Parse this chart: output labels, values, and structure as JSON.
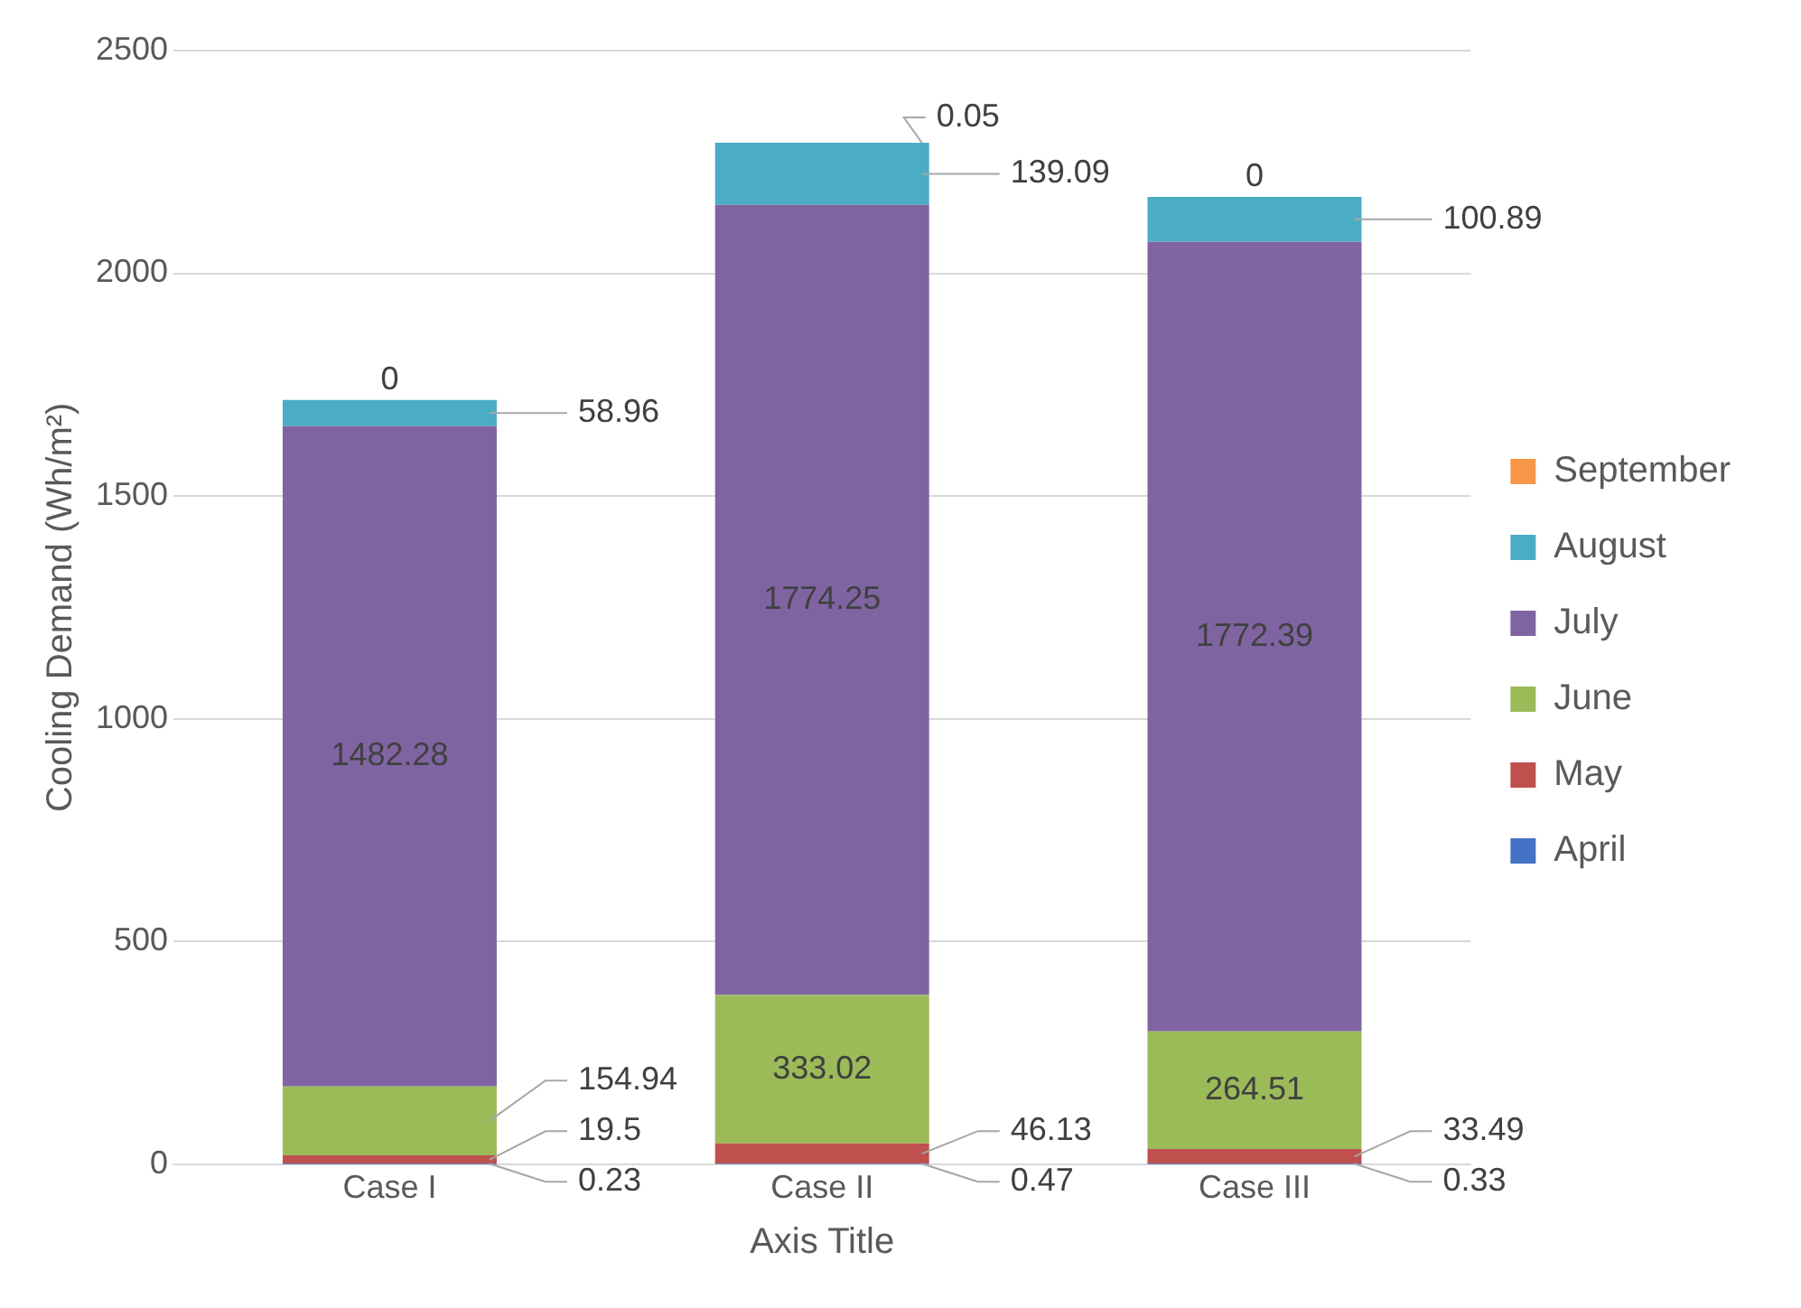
{
  "chart_data": {
    "type": "bar",
    "stacked": true,
    "categories": [
      "Case I",
      "Case II",
      "Case III"
    ],
    "xlabel": "Axis Title",
    "ylabel": "Cooling Demand (Wh/m²)",
    "ylim": [
      0,
      2500
    ],
    "yticks": [
      0,
      500,
      1000,
      1500,
      2000,
      2500
    ],
    "grid": "y",
    "legend": "right",
    "data_labels": true,
    "series": [
      {
        "name": "April",
        "color": "#4472c4",
        "values": [
          0.23,
          0.47,
          0.33
        ]
      },
      {
        "name": "May",
        "color": "#c0504d",
        "values": [
          19.5,
          46.13,
          33.49
        ]
      },
      {
        "name": "June",
        "color": "#9bbb59",
        "values": [
          154.94,
          333.02,
          264.51
        ]
      },
      {
        "name": "July",
        "color": "#8064a2",
        "values": [
          1482.28,
          1774.25,
          1772.39
        ]
      },
      {
        "name": "August",
        "color": "#4bacc6",
        "values": [
          58.96,
          139.09,
          100.89
        ]
      },
      {
        "name": "September",
        "color": "#f79646",
        "values": [
          0,
          0.05,
          0
        ]
      }
    ]
  }
}
